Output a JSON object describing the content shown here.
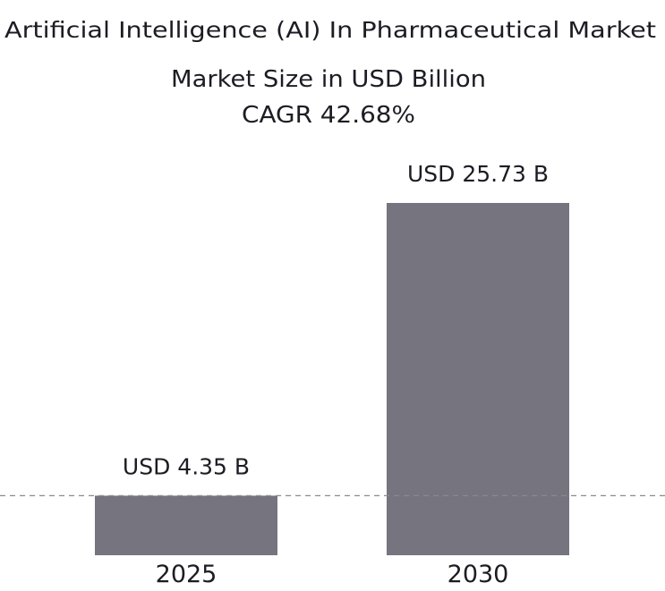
{
  "chart_data": {
    "type": "bar",
    "title": "Artificial Intelligence (AI) In Pharmaceutical Market",
    "subtitle": "Market Size in USD Billion",
    "cagr_label": "CAGR 42.68%",
    "categories": [
      "2025",
      "2030"
    ],
    "values": [
      4.35,
      25.73
    ],
    "data_labels": [
      "USD 4.35 B",
      "USD 25.73 B"
    ],
    "reference_line_value": 4.35,
    "xlabel": "",
    "ylabel": "",
    "ylim": [
      0,
      25.73
    ],
    "grid": false,
    "bar_color": "#75747f",
    "reference_line_color": "#8a8a8a"
  }
}
